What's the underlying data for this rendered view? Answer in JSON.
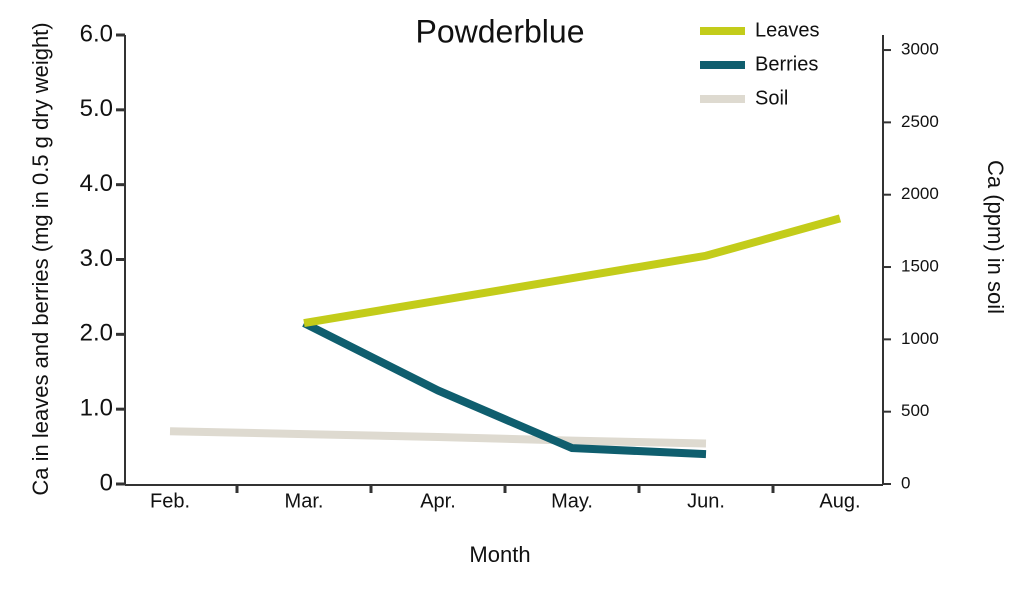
{
  "chart_data": {
    "type": "line",
    "title": "Powderblue",
    "x_label": "Month",
    "y_label": "Ca in leaves and berries (mg in 0.5 g dry weight)",
    "y2_label": "Ca (ppm) in soil",
    "categories": [
      "Feb.",
      "Mar.",
      "Apr.",
      "May.",
      "Jun.",
      "Aug."
    ],
    "series": [
      {
        "name": "Leaves",
        "color": "#c3cc1a",
        "values": [
          null,
          2.15,
          2.45,
          2.75,
          3.05,
          3.55
        ]
      },
      {
        "name": "Berries",
        "color": "#0f5e6e",
        "values": [
          null,
          2.15,
          1.25,
          0.48,
          0.4,
          null
        ]
      },
      {
        "name": "Soil",
        "color": "#dedad0",
        "axis": "y2",
        "values": [
          365,
          345,
          325,
          300,
          280,
          null
        ]
      }
    ],
    "ylim": [
      0,
      6
    ],
    "yticks": [
      0,
      {
        "value": 1,
        "label": "1.0"
      },
      {
        "value": 2,
        "label": "2.0"
      },
      {
        "value": 3,
        "label": "3.0"
      },
      {
        "value": 4,
        "label": "4.0"
      },
      {
        "value": 5,
        "label": "5.0"
      },
      {
        "value": 6,
        "label": "6.0"
      }
    ],
    "y2lim": [
      0,
      3104
    ],
    "y2ticks": [
      0,
      500,
      1000,
      1500,
      2000,
      2500,
      3000
    ],
    "legend": "top-right"
  }
}
